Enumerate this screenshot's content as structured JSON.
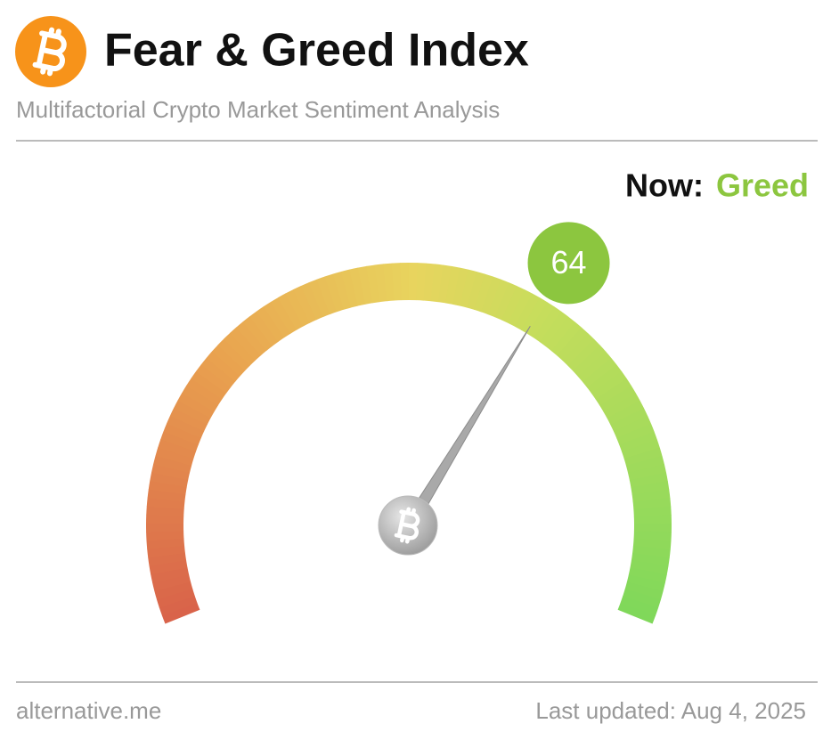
{
  "header": {
    "title": "Fear & Greed Index",
    "subtitle": "Multifactorial Crypto Market Sentiment Analysis"
  },
  "chart_data": {
    "type": "gauge",
    "value": 64,
    "ylim": [
      0,
      100
    ],
    "now_label": "Now:",
    "classification": "Greed",
    "classification_color": "#8cc63f",
    "needle_color": "#a9a9a9"
  },
  "footer": {
    "source": "alternative.me",
    "updated": "Last updated: Aug 4, 2025"
  }
}
